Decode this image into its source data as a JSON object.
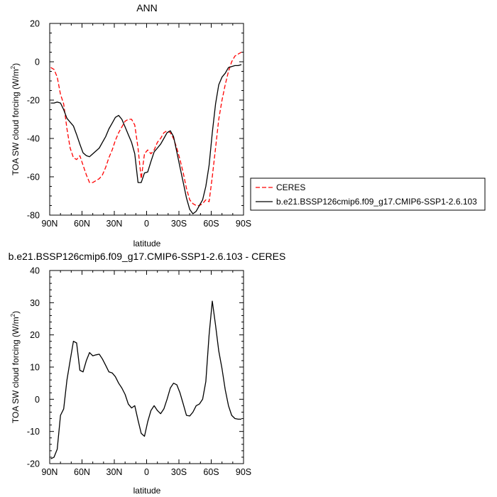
{
  "chart_data": [
    {
      "type": "line",
      "title": "ANN",
      "xlabel": "latitude",
      "ylabel_main": "TOA SW cloud forcing (W/m",
      "ylabel_sup": "2",
      "ylabel_tail": ")",
      "xlim": [
        90,
        -90
      ],
      "ylim": [
        -80,
        20
      ],
      "x_ticks": [
        90,
        60,
        30,
        0,
        -30,
        -60,
        -90
      ],
      "x_tick_labels": [
        "90N",
        "60N",
        "30N",
        "0",
        "30S",
        "60S",
        "90S"
      ],
      "y_ticks": [
        -80,
        -60,
        -40,
        -20,
        0,
        20
      ],
      "y_tick_labels": [
        "-80",
        "-60",
        "-40",
        "-20",
        "0",
        "20"
      ],
      "legend_placement": "right",
      "series": [
        {
          "name": "CERES",
          "color": "#ff0000",
          "dash": "dashed",
          "x": [
            89,
            86,
            83,
            80,
            77,
            74,
            71,
            68,
            65,
            62,
            59,
            56,
            53,
            50,
            47,
            44,
            41,
            38,
            35,
            32,
            29,
            26,
            23,
            20,
            17,
            14,
            11,
            8,
            5,
            2,
            -1,
            -4,
            -7,
            -10,
            -13,
            -16,
            -19,
            -22,
            -25,
            -28,
            -31,
            -34,
            -37,
            -40,
            -43,
            -46,
            -49,
            -52,
            -55,
            -58,
            -61,
            -64,
            -67,
            -70,
            -73,
            -76,
            -79,
            -82,
            -85,
            -88
          ],
          "y": [
            -3,
            -4,
            -8,
            -17,
            -22,
            -35,
            -45,
            -50,
            -51,
            -49,
            -54,
            -59,
            -63,
            -63,
            -62,
            -61,
            -59,
            -55,
            -50,
            -46,
            -41,
            -37,
            -34,
            -31,
            -30,
            -30,
            -33,
            -45,
            -61,
            -48,
            -46,
            -48,
            -46,
            -42,
            -40,
            -37,
            -36,
            -37,
            -40,
            -45,
            -51,
            -58,
            -66,
            -72,
            -74,
            -75,
            -75,
            -74,
            -72,
            -73,
            -60,
            -45,
            -30,
            -20,
            -12,
            -5,
            0,
            3,
            4,
            5
          ]
        },
        {
          "name": "b.e21.BSSP126cmip6.f09_g17.CMIP6-SSP1-2.6.103",
          "color": "#000000",
          "dash": "solid",
          "x": [
            89,
            86,
            83,
            80,
            77,
            74,
            71,
            68,
            65,
            62,
            59,
            56,
            53,
            50,
            47,
            44,
            41,
            38,
            35,
            32,
            29,
            26,
            23,
            20,
            17,
            14,
            11,
            8,
            5,
            2,
            -1,
            -4,
            -7,
            -10,
            -13,
            -16,
            -19,
            -22,
            -25,
            -28,
            -31,
            -34,
            -37,
            -40,
            -43,
            -46,
            -49,
            -52,
            -55,
            -58,
            -61,
            -64,
            -67,
            -70,
            -73,
            -76,
            -79,
            -82,
            -85,
            -88
          ],
          "y": [
            -21.5,
            -21.5,
            -21,
            -21.5,
            -25,
            -29.5,
            -31.5,
            -33.5,
            -38,
            -43,
            -47.5,
            -49,
            -49.5,
            -48,
            -46.5,
            -45,
            -42,
            -39,
            -35,
            -32,
            -29,
            -28,
            -30,
            -34,
            -38,
            -42,
            -48,
            -63,
            -63,
            -58,
            -57.5,
            -52,
            -47,
            -45,
            -43,
            -40,
            -37,
            -36,
            -39,
            -47,
            -55,
            -63,
            -71,
            -77,
            -79.3,
            -78,
            -75,
            -72,
            -65,
            -54,
            -37,
            -22,
            -12,
            -8,
            -6,
            -3,
            -2.5,
            -2,
            -2,
            -1.5
          ]
        }
      ]
    },
    {
      "type": "line",
      "title": "b.e21.BSSP126cmip6.f09_g17.CMIP6-SSP1-2.6.103 - CERES",
      "xlabel": "latitude",
      "ylabel_main": "TOA SW cloud forcing (W/m",
      "ylabel_sup": "2",
      "ylabel_tail": ")",
      "xlim": [
        90,
        -90
      ],
      "ylim": [
        -20,
        40
      ],
      "x_ticks": [
        90,
        60,
        30,
        0,
        -30,
        -60,
        -90
      ],
      "x_tick_labels": [
        "90N",
        "60N",
        "30N",
        "0",
        "30S",
        "60S",
        "90S"
      ],
      "y_ticks": [
        -20,
        -10,
        0,
        10,
        20,
        30,
        40
      ],
      "y_tick_labels": [
        "-20",
        "-10",
        "0",
        "10",
        "20",
        "30",
        "40"
      ],
      "series": [
        {
          "color": "#000000",
          "dash": "solid",
          "x": [
            89,
            86,
            83,
            80,
            77,
            74,
            71,
            68,
            65,
            62,
            59,
            56,
            53,
            50,
            47,
            44,
            41,
            38,
            35,
            32,
            29,
            26,
            23,
            20,
            17,
            14,
            11,
            8,
            5,
            2,
            -1,
            -4,
            -7,
            -10,
            -13,
            -16,
            -19,
            -22,
            -25,
            -28,
            -31,
            -34,
            -37,
            -40,
            -43,
            -46,
            -49,
            -52,
            -55,
            -58,
            -61,
            -64,
            -67,
            -70,
            -73,
            -76,
            -79,
            -82,
            -85,
            -88
          ],
          "y": [
            -18.5,
            -18,
            -15.5,
            -5,
            -3,
            6,
            12,
            18,
            17.5,
            9,
            8.5,
            12,
            14.5,
            13.5,
            13.8,
            14,
            12.5,
            10.5,
            8.5,
            8.2,
            7,
            5,
            3.5,
            1.5,
            -1.5,
            -2.7,
            -2,
            -6.5,
            -10.6,
            -11.5,
            -7,
            -3.5,
            -2,
            -3.5,
            -4.5,
            -3,
            0,
            3.5,
            5,
            4.5,
            2,
            -1.5,
            -5,
            -5.2,
            -4,
            -2,
            -1.5,
            0,
            5.5,
            20,
            30.5,
            23,
            15,
            9.5,
            3,
            -2,
            -5,
            -6,
            -6.2,
            -6.2
          ]
        }
      ]
    }
  ]
}
